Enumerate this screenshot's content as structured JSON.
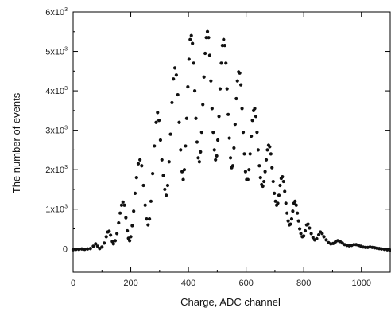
{
  "chart_data": {
    "type": "scatter",
    "xlabel": "Charge, ADC channel",
    "ylabel": "The number of events",
    "xlim": [
      0,
      1100
    ],
    "ylim": [
      -600,
      6000
    ],
    "x_ticks": [
      0,
      200,
      400,
      600,
      800,
      1000
    ],
    "y_ticks": [
      {
        "value": 0,
        "mantissa": "0",
        "exp": ""
      },
      {
        "value": 1000,
        "mantissa": "1x10",
        "exp": "3"
      },
      {
        "value": 2000,
        "mantissa": "2x10",
        "exp": "3"
      },
      {
        "value": 3000,
        "mantissa": "3x10",
        "exp": "3"
      },
      {
        "value": 4000,
        "mantissa": "4x10",
        "exp": "3"
      },
      {
        "value": 5000,
        "mantissa": "5x10",
        "exp": "3"
      },
      {
        "value": 6000,
        "mantissa": "6x10",
        "exp": "3"
      }
    ],
    "grid": false,
    "marker_color": "#111111",
    "series": [
      {
        "points": [
          [
            0,
            -30
          ],
          [
            10,
            -20
          ],
          [
            20,
            -20
          ],
          [
            30,
            -10
          ],
          [
            40,
            -20
          ],
          [
            50,
            -10
          ],
          [
            60,
            0
          ],
          [
            70,
            60
          ],
          [
            78,
            120
          ],
          [
            85,
            60
          ],
          [
            92,
            0
          ],
          [
            100,
            40
          ],
          [
            108,
            140
          ],
          [
            115,
            300
          ],
          [
            120,
            420
          ],
          [
            125,
            440
          ],
          [
            130,
            340
          ],
          [
            136,
            180
          ],
          [
            140,
            120
          ],
          [
            146,
            200
          ],
          [
            152,
            380
          ],
          [
            158,
            650
          ],
          [
            163,
            900
          ],
          [
            168,
            1100
          ],
          [
            173,
            1180
          ],
          [
            178,
            1100
          ],
          [
            183,
            780
          ],
          [
            188,
            450
          ],
          [
            192,
            260
          ],
          [
            196,
            200
          ],
          [
            200,
            300
          ],
          [
            205,
            580
          ],
          [
            210,
            950
          ],
          [
            215,
            1400
          ],
          [
            220,
            1800
          ],
          [
            226,
            2150
          ],
          [
            232,
            2250
          ],
          [
            238,
            2100
          ],
          [
            244,
            1600
          ],
          [
            250,
            1100
          ],
          [
            255,
            750
          ],
          [
            260,
            600
          ],
          [
            265,
            750
          ],
          [
            270,
            1200
          ],
          [
            276,
            1900
          ],
          [
            282,
            2600
          ],
          [
            288,
            3200
          ],
          [
            293,
            3450
          ],
          [
            298,
            3250
          ],
          [
            303,
            2750
          ],
          [
            308,
            2250
          ],
          [
            313,
            1850
          ],
          [
            318,
            1500
          ],
          [
            323,
            1350
          ],
          [
            328,
            1600
          ],
          [
            333,
            2200
          ],
          [
            338,
            2900
          ],
          [
            343,
            3700
          ],
          [
            348,
            4300
          ],
          [
            353,
            4580
          ],
          [
            358,
            4400
          ],
          [
            363,
            3900
          ],
          [
            368,
            3200
          ],
          [
            373,
            2500
          ],
          [
            378,
            1950
          ],
          [
            382,
            1750
          ],
          [
            386,
            2000
          ],
          [
            390,
            2600
          ],
          [
            394,
            3300
          ],
          [
            398,
            4100
          ],
          [
            402,
            4800
          ],
          [
            406,
            5300
          ],
          [
            410,
            5400
          ],
          [
            414,
            5200
          ],
          [
            418,
            4700
          ],
          [
            422,
            4000
          ],
          [
            426,
            3300
          ],
          [
            430,
            2700
          ],
          [
            434,
            2300
          ],
          [
            438,
            2200
          ],
          [
            442,
            2450
          ],
          [
            446,
            2950
          ],
          [
            450,
            3650
          ],
          [
            454,
            4350
          ],
          [
            458,
            4950
          ],
          [
            462,
            5350
          ],
          [
            466,
            5500
          ],
          [
            470,
            5350
          ],
          [
            474,
            4900
          ],
          [
            478,
            4250
          ],
          [
            482,
            3550
          ],
          [
            486,
            2950
          ],
          [
            490,
            2500
          ],
          [
            494,
            2250
          ],
          [
            498,
            2350
          ],
          [
            502,
            2750
          ],
          [
            506,
            3350
          ],
          [
            510,
            4050
          ],
          [
            514,
            4700
          ],
          [
            518,
            5150
          ],
          [
            522,
            5300
          ],
          [
            526,
            5150
          ],
          [
            530,
            4700
          ],
          [
            534,
            4050
          ],
          [
            538,
            3400
          ],
          [
            542,
            2800
          ],
          [
            546,
            2300
          ],
          [
            550,
            2050
          ],
          [
            554,
            2100
          ],
          [
            558,
            2550
          ],
          [
            562,
            3150
          ],
          [
            566,
            3800
          ],
          [
            570,
            4250
          ],
          [
            574,
            4480
          ],
          [
            578,
            4450
          ],
          [
            582,
            4150
          ],
          [
            586,
            3550
          ],
          [
            590,
            2950
          ],
          [
            594,
            2400
          ],
          [
            598,
            1950
          ],
          [
            602,
            1750
          ],
          [
            606,
            1750
          ],
          [
            610,
            2000
          ],
          [
            614,
            2400
          ],
          [
            618,
            2850
          ],
          [
            622,
            3250
          ],
          [
            626,
            3500
          ],
          [
            630,
            3550
          ],
          [
            634,
            3350
          ],
          [
            638,
            2950
          ],
          [
            642,
            2500
          ],
          [
            646,
            2100
          ],
          [
            650,
            1800
          ],
          [
            654,
            1620
          ],
          [
            658,
            1580
          ],
          [
            662,
            1700
          ],
          [
            666,
            1950
          ],
          [
            670,
            2250
          ],
          [
            674,
            2500
          ],
          [
            678,
            2620
          ],
          [
            682,
            2580
          ],
          [
            686,
            2400
          ],
          [
            690,
            2050
          ],
          [
            694,
            1700
          ],
          [
            698,
            1400
          ],
          [
            702,
            1200
          ],
          [
            706,
            1100
          ],
          [
            710,
            1150
          ],
          [
            714,
            1350
          ],
          [
            718,
            1600
          ],
          [
            722,
            1780
          ],
          [
            726,
            1820
          ],
          [
            730,
            1700
          ],
          [
            734,
            1450
          ],
          [
            738,
            1150
          ],
          [
            742,
            900
          ],
          [
            746,
            700
          ],
          [
            750,
            600
          ],
          [
            754,
            620
          ],
          [
            758,
            750
          ],
          [
            762,
            950
          ],
          [
            766,
            1150
          ],
          [
            770,
            1200
          ],
          [
            774,
            1100
          ],
          [
            778,
            900
          ],
          [
            782,
            700
          ],
          [
            786,
            500
          ],
          [
            790,
            380
          ],
          [
            795,
            300
          ],
          [
            800,
            320
          ],
          [
            805,
            450
          ],
          [
            810,
            600
          ],
          [
            815,
            620
          ],
          [
            820,
            520
          ],
          [
            826,
            380
          ],
          [
            832,
            280
          ],
          [
            838,
            220
          ],
          [
            845,
            250
          ],
          [
            852,
            350
          ],
          [
            858,
            420
          ],
          [
            864,
            380
          ],
          [
            870,
            300
          ],
          [
            878,
            220
          ],
          [
            886,
            150
          ],
          [
            894,
            120
          ],
          [
            902,
            130
          ],
          [
            910,
            170
          ],
          [
            918,
            200
          ],
          [
            926,
            180
          ],
          [
            934,
            140
          ],
          [
            942,
            100
          ],
          [
            950,
            80
          ],
          [
            958,
            70
          ],
          [
            966,
            80
          ],
          [
            974,
            100
          ],
          [
            982,
            100
          ],
          [
            990,
            80
          ],
          [
            998,
            60
          ],
          [
            1006,
            40
          ],
          [
            1014,
            30
          ],
          [
            1022,
            30
          ],
          [
            1030,
            40
          ],
          [
            1038,
            30
          ],
          [
            1046,
            20
          ],
          [
            1054,
            10
          ],
          [
            1062,
            0
          ],
          [
            1070,
            -10
          ],
          [
            1080,
            -20
          ],
          [
            1090,
            -30
          ],
          [
            1100,
            -40
          ]
        ]
      }
    ]
  }
}
